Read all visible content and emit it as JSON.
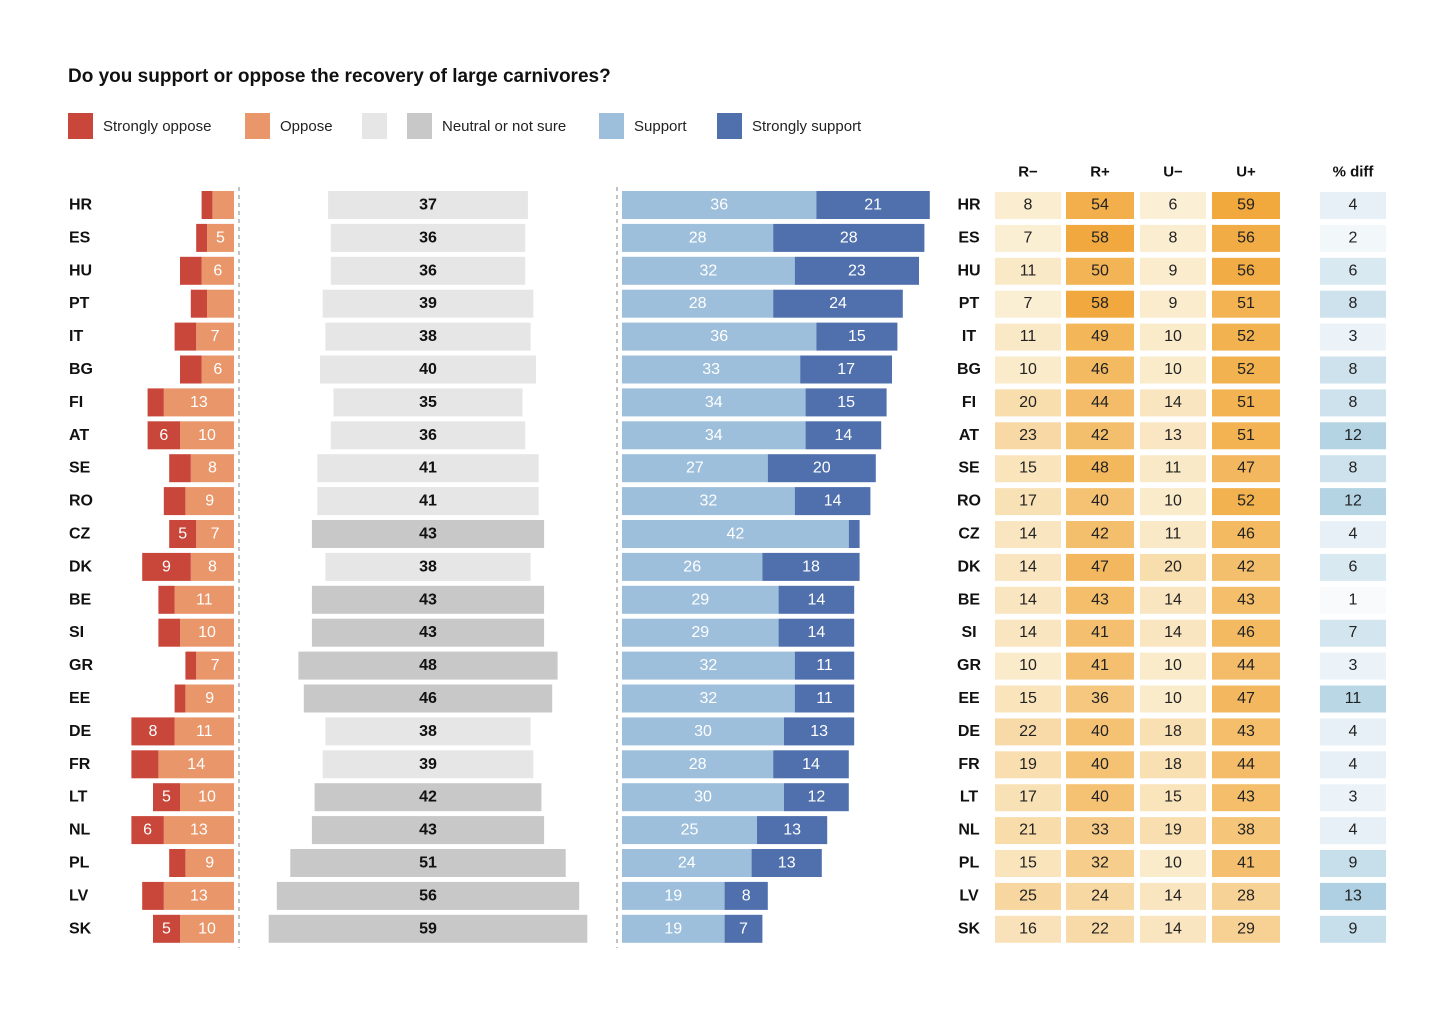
{
  "chart_data": {
    "type": "bar",
    "subtype": "diverging-stacked-bar-with-table",
    "title": "Do you support or oppose the recovery of large carnivores?",
    "legend": [
      {
        "key": "strongly_oppose",
        "label": "Strongly oppose",
        "color": "#c8463a"
      },
      {
        "key": "oppose",
        "label": "Oppose",
        "color": "#e9966a"
      },
      {
        "key": "neutral_light",
        "label": "",
        "color": "#e6e6e6"
      },
      {
        "key": "neutral",
        "label": "Neutral or not sure",
        "color": "#c8c8c8"
      },
      {
        "key": "support",
        "label": "Support",
        "color": "#9dbfdb"
      },
      {
        "key": "strongly_support",
        "label": "Strongly support",
        "color": "#4f6fad"
      }
    ],
    "categories": [
      "HR",
      "ES",
      "HU",
      "PT",
      "IT",
      "BG",
      "FI",
      "AT",
      "SE",
      "RO",
      "CZ",
      "DK",
      "BE",
      "SI",
      "GR",
      "EE",
      "DE",
      "FR",
      "LT",
      "NL",
      "PL",
      "LV",
      "SK"
    ],
    "series": [
      {
        "name": "Strongly oppose",
        "values": [
          2,
          2,
          4,
          3,
          4,
          4,
          3,
          6,
          4,
          4,
          5,
          9,
          3,
          4,
          2,
          2,
          8,
          5,
          5,
          6,
          3,
          4,
          5
        ],
        "labels": [
          null,
          null,
          null,
          null,
          null,
          null,
          null,
          "6",
          null,
          null,
          "5",
          "9",
          null,
          null,
          null,
          null,
          "8",
          null,
          "5",
          "6",
          null,
          null,
          "5"
        ]
      },
      {
        "name": "Oppose",
        "values": [
          4,
          5,
          6,
          5,
          7,
          6,
          13,
          10,
          8,
          9,
          7,
          8,
          11,
          10,
          7,
          9,
          11,
          14,
          10,
          13,
          9,
          13,
          10
        ],
        "labels": [
          null,
          "5",
          "6",
          null,
          "7",
          "6",
          "13",
          "10",
          "8",
          "9",
          "7",
          "8",
          "11",
          "10",
          "7",
          "9",
          "11",
          "14",
          "10",
          "13",
          "9",
          "13",
          "10"
        ]
      },
      {
        "name": "Neutral or not sure",
        "values": [
          37,
          36,
          36,
          39,
          38,
          40,
          35,
          36,
          41,
          41,
          43,
          38,
          43,
          43,
          48,
          46,
          38,
          39,
          42,
          43,
          51,
          56,
          59
        ],
        "labels": [
          "37",
          "36",
          "36",
          "39",
          "38",
          "40",
          "35",
          "36",
          "41",
          "41",
          "43",
          "38",
          "43",
          "43",
          "48",
          "46",
          "38",
          "39",
          "42",
          "43",
          "51",
          "56",
          "59"
        ]
      },
      {
        "name": "Support",
        "values": [
          36,
          28,
          32,
          28,
          36,
          33,
          34,
          34,
          27,
          32,
          42,
          26,
          29,
          29,
          32,
          32,
          30,
          28,
          30,
          25,
          24,
          19,
          19
        ],
        "labels": [
          "36",
          "28",
          "32",
          "28",
          "36",
          "33",
          "34",
          "34",
          "27",
          "32",
          "42",
          "26",
          "29",
          "29",
          "32",
          "32",
          "30",
          "28",
          "30",
          "25",
          "24",
          "19",
          "19"
        ]
      },
      {
        "name": "Strongly support",
        "values": [
          21,
          28,
          23,
          24,
          15,
          17,
          15,
          14,
          20,
          14,
          2,
          18,
          14,
          14,
          11,
          11,
          13,
          14,
          12,
          13,
          13,
          8,
          7
        ],
        "labels": [
          "21",
          "28",
          "23",
          "24",
          "15",
          "17",
          "15",
          "14",
          "20",
          "14",
          null,
          "18",
          "14",
          "14",
          "11",
          "11",
          "13",
          "14",
          "12",
          "13",
          "13",
          "8",
          "7"
        ]
      }
    ],
    "table": {
      "columns": [
        "R−",
        "R+",
        "U−",
        "U+",
        "% diff"
      ],
      "rows": [
        [
          "8",
          "54",
          "6",
          "59",
          "4"
        ],
        [
          "7",
          "58",
          "8",
          "56",
          "2"
        ],
        [
          "11",
          "50",
          "9",
          "56",
          "6"
        ],
        [
          "7",
          "58",
          "9",
          "51",
          "8"
        ],
        [
          "11",
          "49",
          "10",
          "52",
          "3"
        ],
        [
          "10",
          "46",
          "10",
          "52",
          "8"
        ],
        [
          "20",
          "44",
          "14",
          "51",
          "8"
        ],
        [
          "23",
          "42",
          "13",
          "51",
          "12"
        ],
        [
          "15",
          "48",
          "11",
          "47",
          "8"
        ],
        [
          "17",
          "40",
          "10",
          "52",
          "12"
        ],
        [
          "14",
          "42",
          "11",
          "46",
          "4"
        ],
        [
          "14",
          "47",
          "20",
          "42",
          "6"
        ],
        [
          "14",
          "43",
          "14",
          "43",
          "1"
        ],
        [
          "14",
          "41",
          "14",
          "46",
          "7"
        ],
        [
          "10",
          "41",
          "10",
          "44",
          "3"
        ],
        [
          "15",
          "36",
          "10",
          "47",
          "11"
        ],
        [
          "22",
          "40",
          "18",
          "43",
          "4"
        ],
        [
          "19",
          "40",
          "18",
          "44",
          "4"
        ],
        [
          "17",
          "40",
          "15",
          "43",
          "3"
        ],
        [
          "21",
          "33",
          "19",
          "38",
          "4"
        ],
        [
          "15",
          "32",
          "10",
          "41",
          "9"
        ],
        [
          "25",
          "24",
          "14",
          "28",
          "13"
        ],
        [
          "16",
          "22",
          "14",
          "29",
          "9"
        ]
      ]
    }
  }
}
